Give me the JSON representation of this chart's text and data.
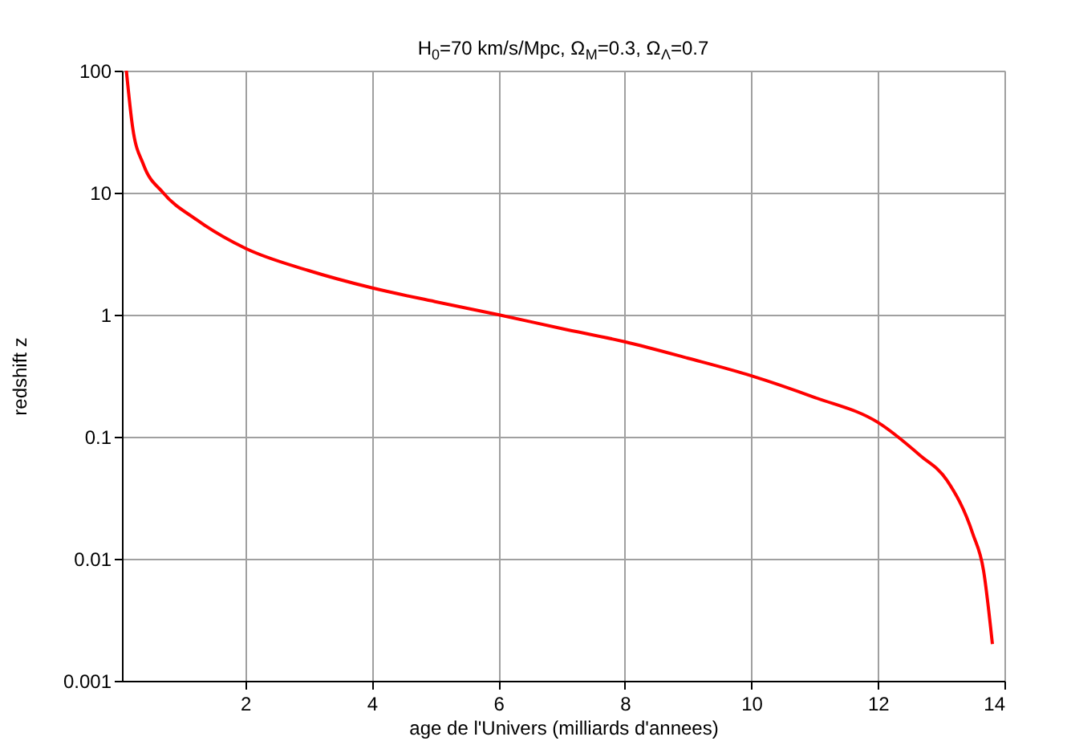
{
  "chart_data": {
    "type": "line",
    "title": "H$_{0}$=70 km/s/Mpc, Ω$_{M}$=0.3, Ω$_{Λ}$=0.7",
    "xlabel": "age de l'Univers (milliards d'annees)",
    "ylabel": "redshift z",
    "x": [
      0.12,
      0.22,
      0.39,
      0.7,
      1.23,
      2,
      3,
      4,
      5,
      6,
      7,
      8,
      9,
      10,
      11,
      12,
      12.67,
      13.09,
      13.5,
      13.67,
      13.81
    ],
    "series": [
      {
        "color": "#ff0000",
        "values": [
          100,
          34,
          17,
          10,
          6.0,
          3.5,
          2.3,
          1.66,
          1.28,
          1.0,
          0.77,
          0.6,
          0.44,
          0.316,
          0.21,
          0.131,
          0.07,
          0.044,
          0.016,
          0.008,
          0.002
        ]
      }
    ],
    "xlim": [
      0.05,
      14
    ],
    "xticks": [
      2,
      4,
      6,
      8,
      10,
      12,
      14
    ],
    "ylim": [
      0.001,
      100
    ],
    "yticks": [
      0.001,
      0.01,
      0.1,
      1,
      10,
      100
    ],
    "log": "y",
    "grid": true,
    "marker": "none",
    "line_style": "solid"
  }
}
